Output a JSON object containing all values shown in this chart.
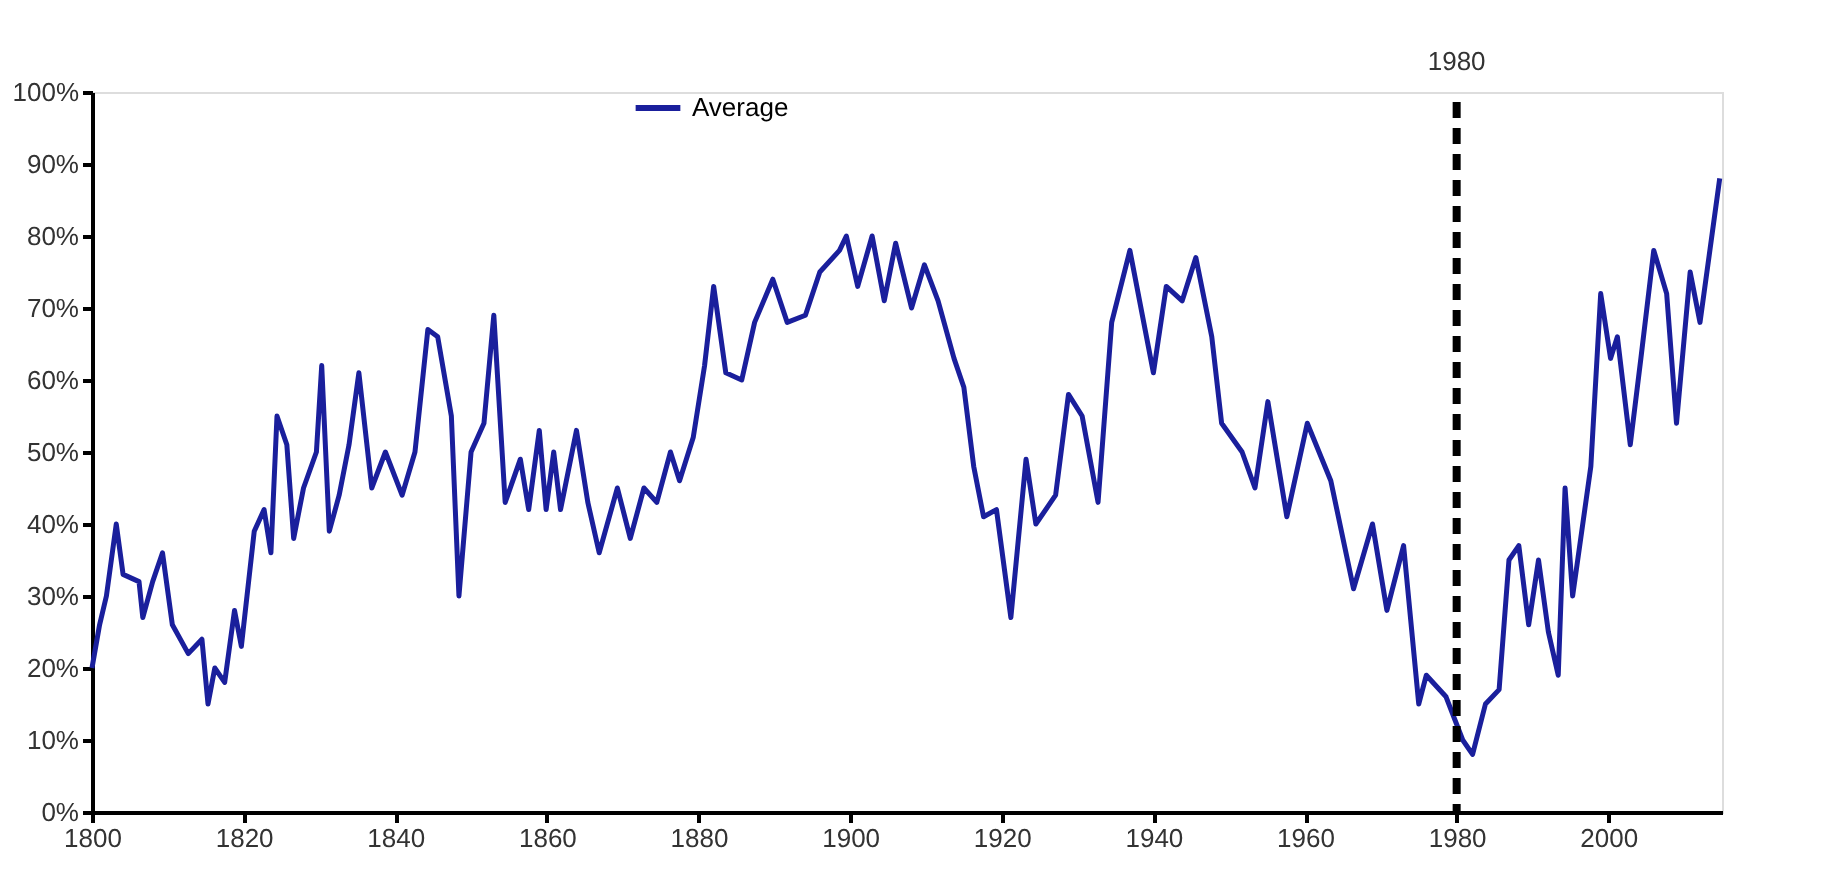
{
  "chart_data": {
    "type": "line",
    "x": [
      1800,
      1801,
      1801.9,
      1803.2,
      1804.1,
      1806.2,
      1806.7,
      1808,
      1809.3,
      1810.6,
      1812.7,
      1814.5,
      1815.3,
      1816.2,
      1817.5,
      1818.8,
      1819.7,
      1821.4,
      1822.7,
      1823.6,
      1824.4,
      1825.7,
      1826.6,
      1827.9,
      1829.6,
      1830.3,
      1831.3,
      1832.6,
      1833.9,
      1835.2,
      1836.9,
      1838.7,
      1840.9,
      1842.6,
      1844.3,
      1845.6,
      1847.4,
      1848.4,
      1850,
      1851.7,
      1853,
      1854.5,
      1856.5,
      1857.6,
      1859,
      1859.9,
      1860.9,
      1861.8,
      1863.9,
      1865.4,
      1866.9,
      1869.3,
      1871,
      1872.8,
      1874.5,
      1876.3,
      1877.5,
      1879.3,
      1880.8,
      1882,
      1883.6,
      1885.7,
      1887.4,
      1889.8,
      1891.7,
      1894.1,
      1896,
      1898.6,
      1899.5,
      1901,
      1902.9,
      1904.5,
      1906,
      1908.1,
      1909.8,
      1911.6,
      1913.7,
      1915,
      1916.3,
      1917.6,
      1919.3,
      1921.2,
      1923.2,
      1924.5,
      1927.1,
      1928.8,
      1930.6,
      1932.7,
      1934.5,
      1936.9,
      1940,
      1941.7,
      1943.8,
      1945.6,
      1947.7,
      1949,
      1951.7,
      1953.4,
      1955.1,
      1957.6,
      1960.3,
      1963.4,
      1966.4,
      1968.9,
      1970.8,
      1973,
      1975,
      1976,
      1978.6,
      1980.8,
      1982.1,
      1983.8,
      1985.6,
      1986.9,
      1988.2,
      1989.5,
      1990.8,
      1992.1,
      1993.4,
      1994.3,
      1995.3,
      1997.7,
      1999,
      2000.3,
      2001.2,
      2002.9,
      2004.3,
      2006,
      2007.7,
      2009,
      2010.8,
      2012.1,
      2014.7
    ],
    "series": [
      {
        "name": "Average",
        "color": "#1a1f9c",
        "values": [
          20,
          26,
          30,
          40,
          33,
          32,
          27,
          32,
          36,
          26,
          22,
          24,
          15,
          20,
          18,
          28,
          23,
          39,
          42,
          36,
          55,
          51,
          38,
          45,
          50,
          62,
          39,
          44,
          51,
          61,
          45,
          50,
          44,
          50,
          67,
          66,
          55,
          30,
          50,
          54,
          69,
          43,
          49,
          42,
          53,
          42,
          50,
          42,
          53,
          43,
          36,
          45,
          38,
          45,
          43,
          50,
          46,
          52,
          62,
          73,
          61,
          60,
          68,
          74,
          68,
          69,
          75,
          78,
          80,
          73,
          80,
          71,
          79,
          70,
          76,
          71,
          63,
          59,
          48,
          41,
          42,
          27,
          49,
          40,
          44,
          58,
          55,
          43,
          68,
          78,
          61,
          73,
          71,
          77,
          66,
          54,
          50,
          45,
          57,
          41,
          54,
          46,
          31,
          40,
          28,
          37,
          15,
          19,
          16,
          10,
          8,
          15,
          17,
          35,
          37,
          26,
          35,
          25,
          19,
          45,
          30,
          48,
          72,
          63,
          66,
          51,
          63,
          78,
          72,
          54,
          75,
          68,
          88
        ]
      }
    ],
    "xlim": [
      1800,
      2015
    ],
    "xticks": [
      1800,
      1820,
      1840,
      1860,
      1880,
      1900,
      1920,
      1940,
      1960,
      1980,
      2000
    ],
    "ylim": [
      0,
      100
    ],
    "yticks": [
      {
        "value": 0,
        "label": "0%"
      },
      {
        "value": 10,
        "label": "10%"
      },
      {
        "value": 20,
        "label": "20%"
      },
      {
        "value": 30,
        "label": "30%"
      },
      {
        "value": 40,
        "label": "40%"
      },
      {
        "value": 50,
        "label": "50%"
      },
      {
        "value": 60,
        "label": "60%"
      },
      {
        "value": 70,
        "label": "70%"
      },
      {
        "value": 80,
        "label": "80%"
      },
      {
        "value": 90,
        "label": "90%"
      },
      {
        "value": 100,
        "label": "100%"
      }
    ],
    "ref_lines": [
      {
        "axis": "x",
        "value": 1980,
        "label": "1980",
        "color": "#000000",
        "line_style": "dashed"
      }
    ],
    "legend": "top",
    "grid": false,
    "line_style": "solid"
  }
}
